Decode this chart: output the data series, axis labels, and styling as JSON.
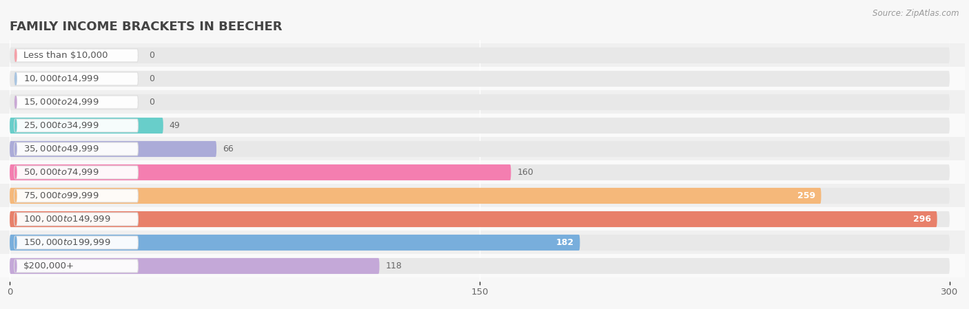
{
  "title": "FAMILY INCOME BRACKETS IN BEECHER",
  "source": "Source: ZipAtlas.com",
  "categories": [
    "Less than $10,000",
    "$10,000 to $14,999",
    "$15,000 to $24,999",
    "$25,000 to $34,999",
    "$35,000 to $49,999",
    "$50,000 to $74,999",
    "$75,000 to $99,999",
    "$100,000 to $149,999",
    "$150,000 to $199,999",
    "$200,000+"
  ],
  "values": [
    0,
    0,
    0,
    49,
    66,
    160,
    259,
    296,
    182,
    118
  ],
  "bar_colors": [
    "#F4A0A8",
    "#A8C4E0",
    "#C9A8D4",
    "#68CECA",
    "#ABABD8",
    "#F47EB0",
    "#F5B87A",
    "#E8806A",
    "#78AEDC",
    "#C4A8D8"
  ],
  "background_color": "#f7f7f7",
  "bar_bg_color": "#e8e8e8",
  "row_bg_colors": [
    "#f0f0f0",
    "#fafafa"
  ],
  "xlim_data": 310,
  "xticks": [
    0,
    150,
    300
  ],
  "title_fontsize": 13,
  "label_fontsize": 9.5,
  "value_fontsize": 9,
  "source_fontsize": 8.5,
  "bar_height": 0.68,
  "value_label_positions": [
    "outside_dark",
    "outside_dark",
    "outside_dark",
    "outside_dark",
    "outside_dark",
    "outside_dark",
    "inside_white",
    "inside_white",
    "inside_white",
    "outside_dark"
  ]
}
